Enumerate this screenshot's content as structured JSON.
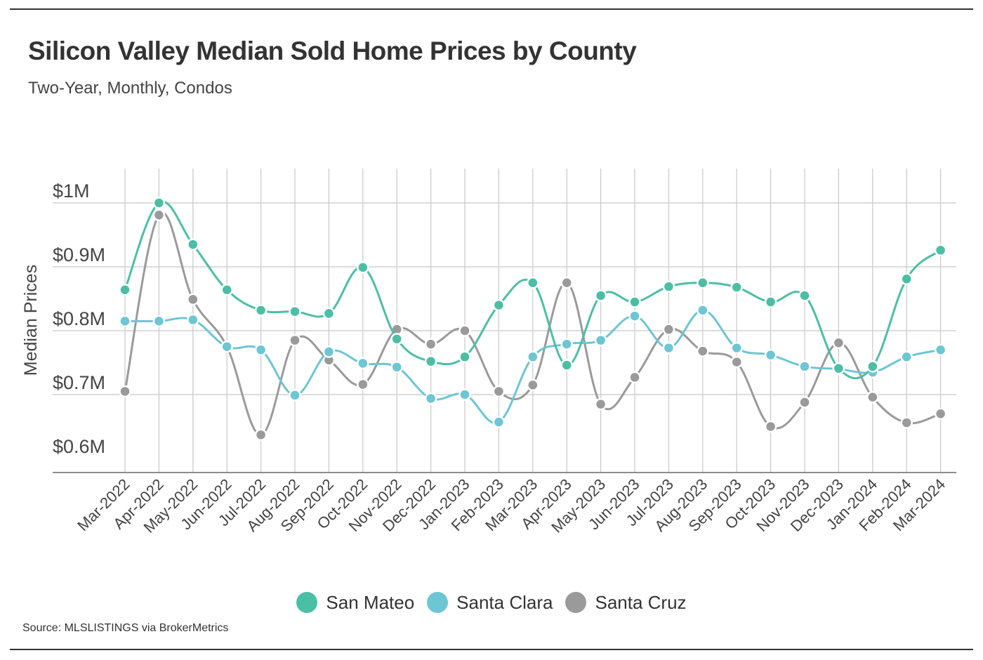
{
  "title": "Silicon Valley Median Sold Home Prices by County",
  "subtitle": "Two-Year, Monthly, Condos",
  "source": "Source:  MLSLISTINGS via BrokerMetrics",
  "chart_data": {
    "type": "line",
    "title": "Silicon Valley Median Sold Home Prices by County",
    "subtitle": "Two-Year, Monthly, Condos",
    "xlabel": "",
    "ylabel": "Median Prices",
    "ylim": [
      0.6,
      1.0
    ],
    "yticks": [
      1.0,
      0.9,
      0.8,
      0.7,
      0.6
    ],
    "ytick_labels": [
      "$1M",
      "$0.9M",
      "$0.8M",
      "$0.7M",
      "$0.6M"
    ],
    "grid": true,
    "legend_position": "bottom",
    "categories": [
      "Mar-2022",
      "Apr-2022",
      "May-2022",
      "Jun-2022",
      "Jul-2022",
      "Aug-2022",
      "Sep-2022",
      "Oct-2022",
      "Nov-2022",
      "Dec-2022",
      "Jan-2023",
      "Feb-2023",
      "Mar-2023",
      "Apr-2023",
      "May-2023",
      "Jun-2023",
      "Jul-2023",
      "Aug-2023",
      "Sep-2023",
      "Oct-2023",
      "Nov-2023",
      "Dec-2023",
      "Jan-2024",
      "Feb-2024",
      "Mar-2024"
    ],
    "series": [
      {
        "name": "San Mateo",
        "color": "#4bbfa6",
        "values": [
          0.864,
          1.0,
          0.935,
          0.864,
          0.832,
          0.83,
          0.827,
          0.899,
          0.787,
          0.752,
          0.759,
          0.84,
          0.875,
          0.746,
          0.855,
          0.845,
          0.869,
          0.875,
          0.868,
          0.845,
          0.855,
          0.741,
          0.744,
          0.881,
          0.926
        ]
      },
      {
        "name": "Santa Clara",
        "color": "#6cc6d4",
        "values": [
          0.815,
          0.815,
          0.817,
          0.775,
          0.77,
          0.699,
          0.767,
          0.749,
          0.743,
          0.694,
          0.7,
          0.657,
          0.759,
          0.779,
          0.785,
          0.823,
          0.773,
          0.832,
          0.773,
          0.762,
          0.744,
          0.74,
          0.735,
          0.759,
          0.77
        ]
      },
      {
        "name": "Santa Cruz",
        "color": "#9a9a9a",
        "values": [
          0.705,
          0.981,
          0.849,
          0.775,
          0.637,
          0.785,
          0.754,
          0.716,
          0.802,
          0.779,
          0.8,
          0.705,
          0.715,
          0.875,
          0.685,
          0.727,
          0.802,
          0.768,
          0.751,
          0.65,
          0.688,
          0.781,
          0.696,
          0.656,
          0.67
        ]
      }
    ]
  }
}
